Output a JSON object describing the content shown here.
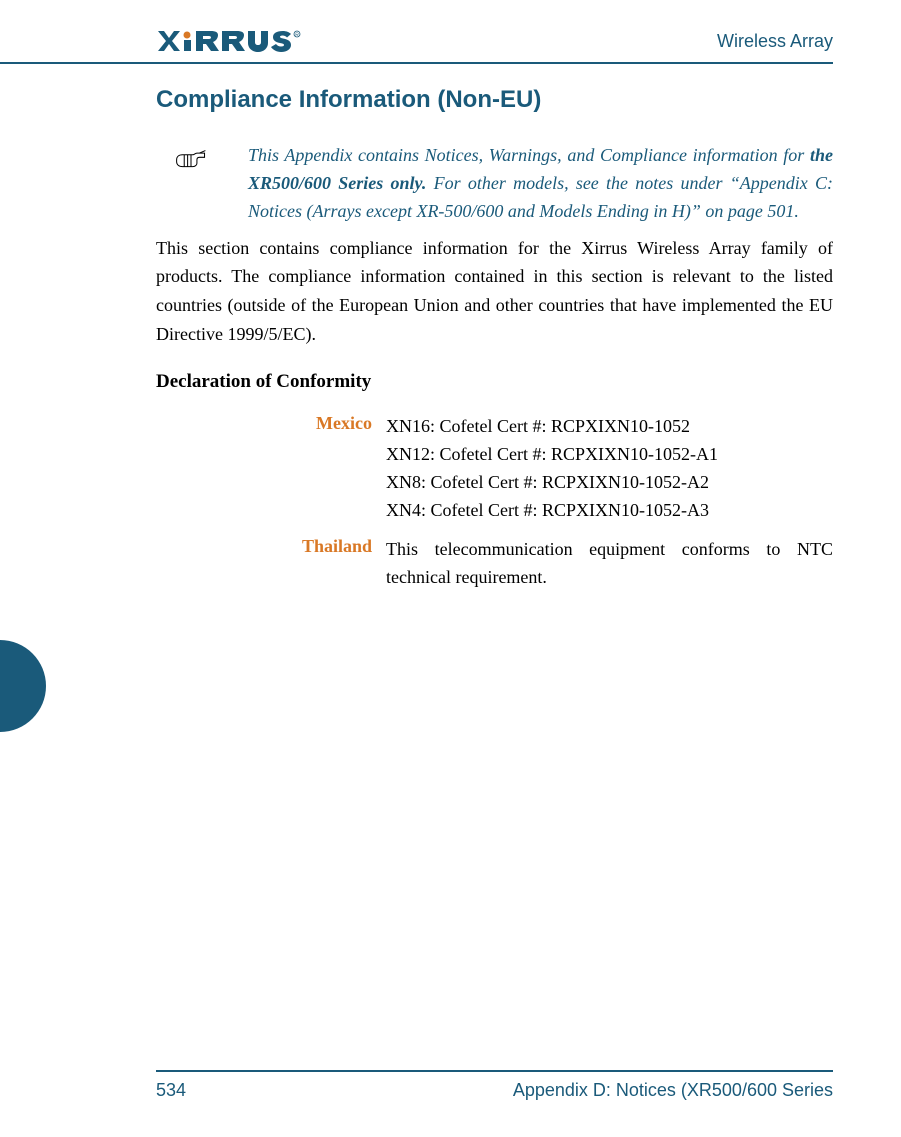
{
  "colors": {
    "brand": "#1a5a7a",
    "accent": "#d97825",
    "text": "#000000",
    "background": "#ffffff"
  },
  "fonts": {
    "heading_family": "Arial, Helvetica, sans-serif",
    "body_family": "Georgia, 'Times New Roman', serif",
    "section_title_size": 24,
    "body_size": 18,
    "subsection_size": 19
  },
  "header": {
    "logo_text": "XIRRUS",
    "right_text": "Wireless Array"
  },
  "section_title": "Compliance Information (Non-EU)",
  "notice": {
    "prefix": "This Appendix contains Notices, Warnings, and Compliance information for ",
    "bold": "the XR500/600 Series only.",
    "suffix": " For other models, see the notes under “Appendix C: Notices (Arrays except XR-500/600 and Models Ending in H)” on page 501."
  },
  "body_paragraph": "This section contains compliance information for the Xirrus Wireless Array family of products. The compliance information contained in this section is relevant to the listed countries (outside of the European Union and other countries that have implemented the EU Directive 1999/5/EC).",
  "subsection_title": "Declaration of Conformity",
  "conformity": [
    {
      "country": "Mexico",
      "lines": [
        "XN16: Cofetel Cert #: RCPXIXN10-1052",
        "XN12: Cofetel Cert #: RCPXIXN10-1052-A1",
        "XN8: Cofetel Cert #: RCPXIXN10-1052-A2",
        "XN4: Cofetel Cert #: RCPXIXN10-1052-A3"
      ]
    },
    {
      "country": "Thailand",
      "lines": [
        "This telecommunication equipment conforms to NTC technical requirement."
      ]
    }
  ],
  "footer": {
    "page_number": "534",
    "right_text": "Appendix D: Notices (XR500/600 Series"
  }
}
